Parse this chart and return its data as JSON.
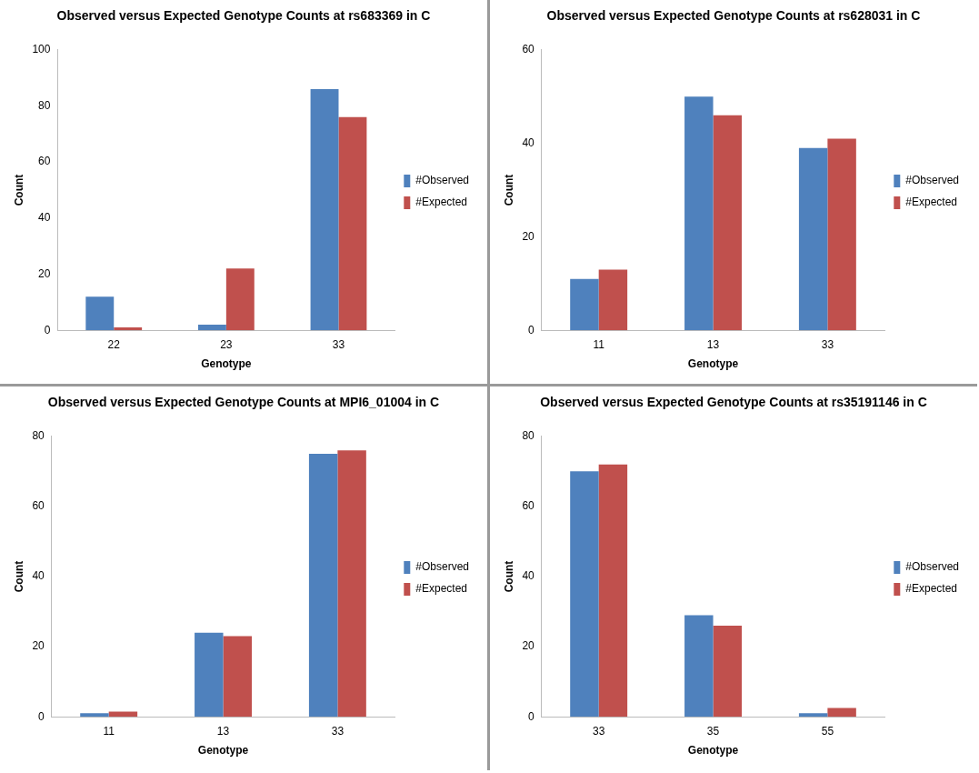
{
  "chart_data": [
    {
      "type": "bar",
      "title": "Observed versus Expected Genotype Counts at rs683369 in C",
      "xlabel": "Genotype",
      "ylabel": "Count",
      "categories": [
        "22",
        "23",
        "33"
      ],
      "series": [
        {
          "name": "#Observed",
          "color": "#4f81bd",
          "values": [
            12,
            2,
            86
          ]
        },
        {
          "name": "#Expected",
          "color": "#c0504d",
          "values": [
            1,
            22,
            76
          ]
        }
      ],
      "ylim": [
        0,
        100
      ],
      "yticks": [
        0,
        20,
        40,
        60,
        80,
        100
      ],
      "grid": false,
      "legend": "right"
    },
    {
      "type": "bar",
      "title": "Observed versus Expected Genotype Counts at rs628031 in C",
      "xlabel": "Genotype",
      "ylabel": "Count",
      "categories": [
        "11",
        "13",
        "33"
      ],
      "series": [
        {
          "name": "#Observed",
          "color": "#4f81bd",
          "values": [
            11,
            50,
            39
          ]
        },
        {
          "name": "#Expected",
          "color": "#c0504d",
          "values": [
            13,
            46,
            41
          ]
        }
      ],
      "ylim": [
        0,
        60
      ],
      "yticks": [
        0,
        20,
        40,
        60
      ],
      "grid": false,
      "legend": "right"
    },
    {
      "type": "bar",
      "title": "Observed versus Expected Genotype Counts at MPI6_01004 in C",
      "xlabel": "Genotype",
      "ylabel": "Count",
      "categories": [
        "11",
        "13",
        "33"
      ],
      "series": [
        {
          "name": "#Observed",
          "color": "#4f81bd",
          "values": [
            1,
            24,
            75
          ]
        },
        {
          "name": "#Expected",
          "color": "#c0504d",
          "values": [
            1.5,
            23,
            76
          ]
        }
      ],
      "ylim": [
        0,
        80
      ],
      "yticks": [
        0,
        20,
        40,
        60,
        80
      ],
      "grid": false,
      "legend": "right"
    },
    {
      "type": "bar",
      "title": "Observed versus Expected Genotype Counts at rs35191146 in C",
      "xlabel": "Genotype",
      "ylabel": "Count",
      "categories": [
        "33",
        "35",
        "55"
      ],
      "series": [
        {
          "name": "#Observed",
          "color": "#4f81bd",
          "values": [
            70,
            29,
            1
          ]
        },
        {
          "name": "#Expected",
          "color": "#c0504d",
          "values": [
            72,
            26,
            2.5
          ]
        }
      ],
      "ylim": [
        0,
        80
      ],
      "yticks": [
        0,
        20,
        40,
        60,
        80
      ],
      "grid": false,
      "legend": "right"
    }
  ]
}
